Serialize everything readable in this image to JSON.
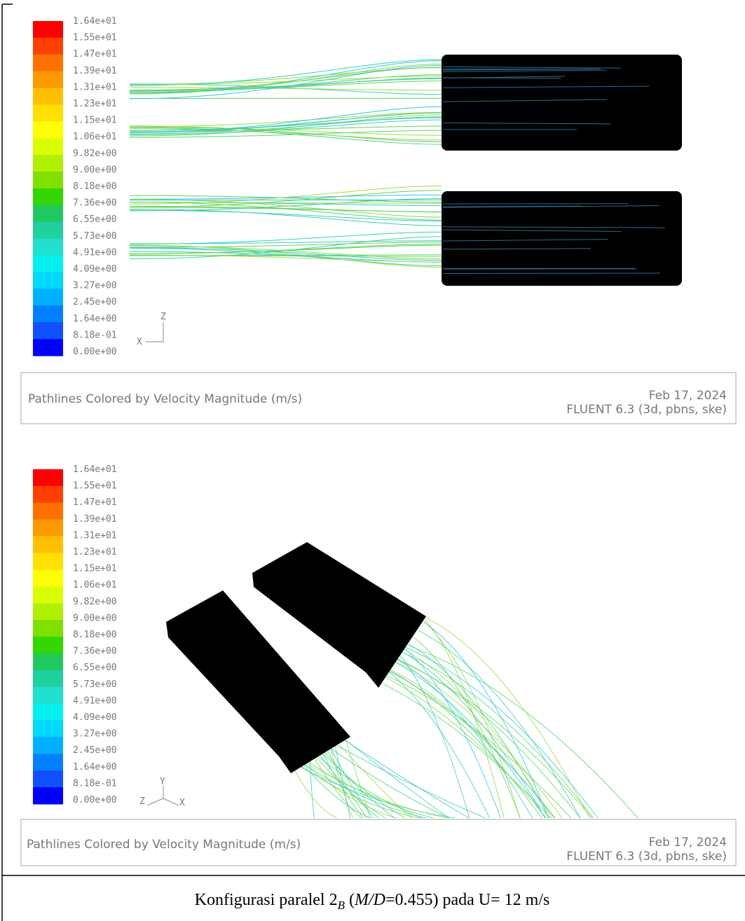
{
  "panels": [
    {
      "colorbar_labels": [
        "1.64e+01",
        "1.55e+01",
        "1.47e+01",
        "1.39e+01",
        "1.31e+01",
        "1.23e+01",
        "1.15e+01",
        "1.06e+01",
        "9.82e+00",
        "9.00e+00",
        "8.18e+00",
        "7.36e+00",
        "6.55e+00",
        "5.73e+00",
        "4.91e+00",
        "4.09e+00",
        "3.27e+00",
        "2.45e+00",
        "1.64e+00",
        "8.18e-01",
        "0.00e+00"
      ],
      "triad_labels": [
        "Z",
        "X"
      ],
      "caption": "Pathlines Colored by Velocity Magnitude (m/s)",
      "date": "Feb 17, 2024",
      "software": "FLUENT 6.3 (3d, pbns, ske)"
    },
    {
      "colorbar_labels": [
        "1.64e+01",
        "1.55e+01",
        "1.47e+01",
        "1.39e+01",
        "1.31e+01",
        "1.23e+01",
        "1.15e+01",
        "1.06e+01",
        "9.82e+00",
        "9.00e+00",
        "8.18e+00",
        "7.36e+00",
        "6.55e+00",
        "5.73e+00",
        "4.91e+00",
        "4.09e+00",
        "3.27e+00",
        "2.45e+00",
        "1.64e+00",
        "8.18e-01",
        "0.00e+00"
      ],
      "triad_labels": [
        "Y",
        "Z",
        "X"
      ],
      "caption": "Pathlines Colored by Velocity Magnitude (m/s)",
      "date": "Feb 17, 2024",
      "software": "FLUENT 6.3 (3d, pbns, ske)"
    }
  ],
  "figure_caption": {
    "text_1": "Konfigurasi paralel 2",
    "subscript": "B",
    "text_2": " (",
    "italic": "M/D",
    "text_3": "=0.455) pada U= 12 m/s"
  }
}
